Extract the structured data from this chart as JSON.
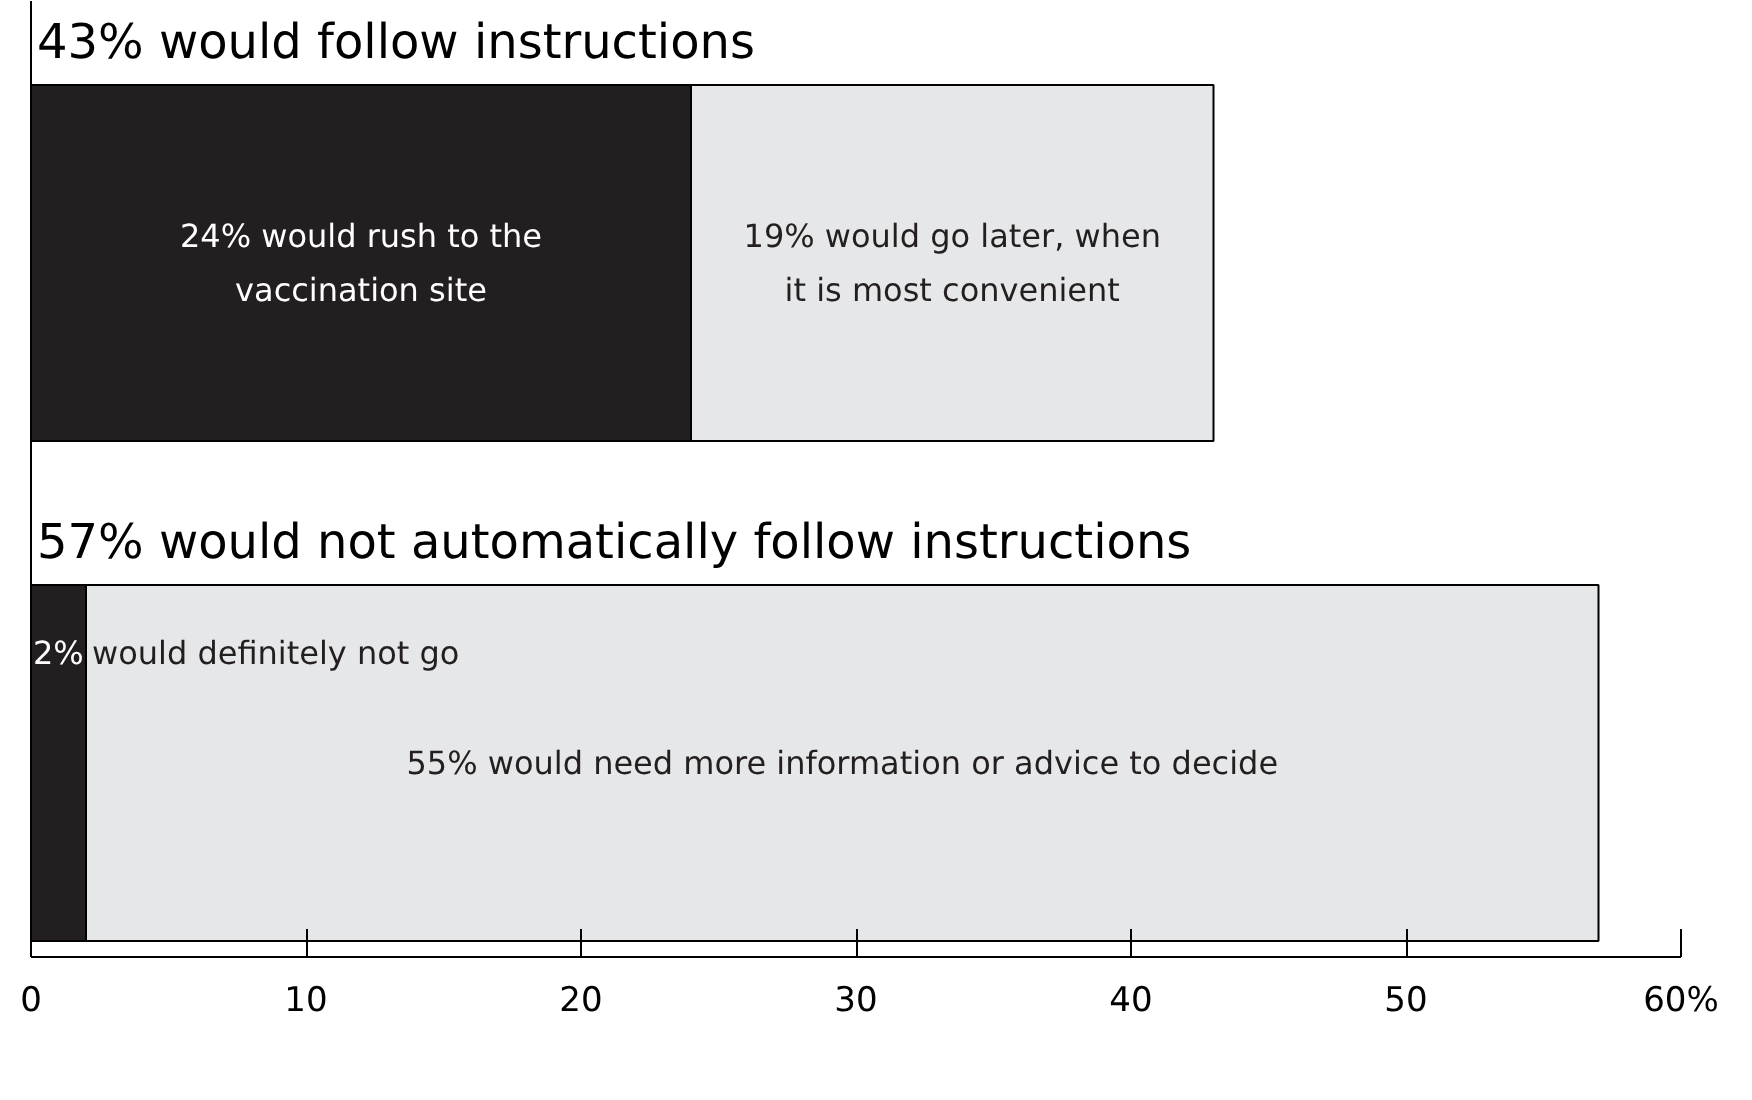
{
  "chart_data": {
    "type": "bar",
    "orientation": "horizontal",
    "stacked": true,
    "categories": [
      "43% would follow instructions",
      "57% would not automatically follow instructions"
    ],
    "series": [
      {
        "color": "#231f20",
        "values": [
          24,
          2
        ],
        "value_labels": [
          "24% would rush to the vaccination site",
          "2% would definitely not go"
        ]
      },
      {
        "color": "#e6e7e8",
        "values": [
          19,
          55
        ],
        "value_labels": [
          "19% would go later, when it is most convenient",
          "55% would need more information or advice to decide"
        ]
      }
    ],
    "xlim": [
      0,
      60
    ],
    "xticks": [
      0,
      10,
      20,
      30,
      40,
      50,
      {
        "value": 60,
        "label": "60%"
      }
    ],
    "tick_labels": "x",
    "grid": false
  }
}
